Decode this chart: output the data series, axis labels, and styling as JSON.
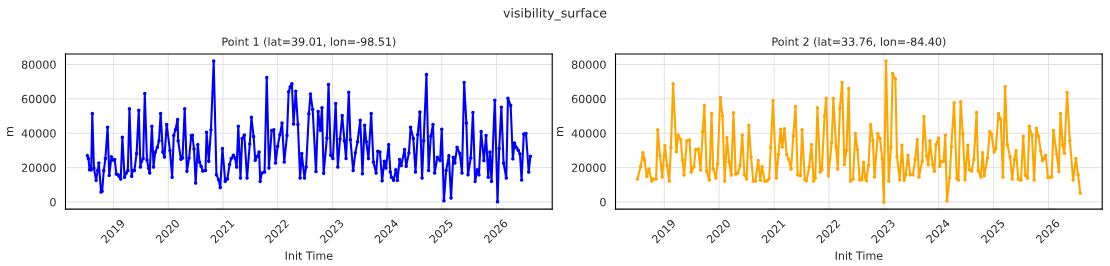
{
  "chart_data": [
    {
      "type": "line",
      "title": "Point 1 (lat=39.01, lon=-98.51)",
      "annotations": [
        "visibility_surface"
      ],
      "xlabel": "Init Time",
      "ylabel": "m",
      "xlim": [
        2018.12,
        2027.02
      ],
      "xticks": [
        2019,
        2020,
        2021,
        2022,
        2023,
        2024,
        2025,
        2026
      ],
      "ylim": [
        -4100,
        86100
      ],
      "yticks": [
        0,
        20000,
        40000,
        60000,
        80000
      ],
      "grid": true,
      "marker": "circle",
      "line_style": "solid",
      "series": [
        {
          "color": "#0000ff",
          "x": [
            2018.52,
            2018.54,
            2018.56,
            2018.59,
            2018.61,
            2018.64,
            2018.68,
            2018.71,
            2018.73,
            2018.77,
            2018.79,
            2018.82,
            2018.85,
            2018.89,
            2018.92,
            2018.96,
            2018.99,
            2019.02,
            2019.05,
            2019.08,
            2019.1,
            2019.13,
            2019.16,
            2019.2,
            2019.23,
            2019.26,
            2019.29,
            2019.33,
            2019.35,
            2019.38,
            2019.42,
            2019.46,
            2019.49,
            2019.51,
            2019.54,
            2019.57,
            2019.61,
            2019.64,
            2019.66,
            2019.7,
            2019.73,
            2019.76,
            2019.8,
            2019.83,
            2019.86,
            2019.9,
            2019.93,
            2019.97,
            2020.03,
            2020.07,
            2020.1,
            2020.13,
            2020.17,
            2020.18,
            2020.23,
            2020.26,
            2020.3,
            2020.34,
            2020.38,
            2020.42,
            2020.44,
            2020.47,
            2020.5,
            2020.54,
            2020.57,
            2020.6,
            2020.63,
            2020.68,
            2020.7,
            2020.74,
            2020.78,
            2020.83,
            2020.88,
            2020.92,
            2020.95,
            2020.99,
            2021.04,
            2021.08,
            2021.12,
            2021.15,
            2021.19,
            2021.22,
            2021.25,
            2021.28,
            2021.32,
            2021.35,
            2021.39,
            2021.44,
            2021.49,
            2021.52,
            2021.56,
            2021.59,
            2021.63,
            2021.66,
            2021.68,
            2021.71,
            2021.76,
            2021.8,
            2021.84,
            2021.89,
            2021.93,
            2021.96,
            2022.0,
            2022.04,
            2022.08,
            2022.12,
            2022.17,
            2022.2,
            2022.23,
            2022.26,
            2022.29,
            2022.33,
            2022.37,
            2022.41,
            2022.44,
            2022.49,
            2022.52,
            2022.57,
            2022.6,
            2022.64,
            2022.7,
            2022.74,
            2022.78,
            2022.81,
            2022.84,
            2022.9,
            2022.93,
            2022.97,
            2023.01,
            2023.06,
            2023.1,
            2023.14,
            2023.18,
            2023.22,
            2023.25,
            2023.3,
            2023.33,
            2023.38,
            2023.42,
            2023.46,
            2023.51,
            2023.55,
            2023.59,
            2023.62,
            2023.66,
            2023.71,
            2023.75,
            2023.8,
            2023.83,
            2023.87,
            2023.91,
            2023.95,
            2023.98,
            2024.03,
            2024.06,
            2024.08,
            2024.12,
            2024.16,
            2024.19,
            2024.23,
            2024.26,
            2024.32,
            2024.35,
            2024.4,
            2024.43,
            2024.48,
            2024.52,
            2024.56,
            2024.6,
            2024.64,
            2024.67,
            2024.72,
            2024.76,
            2024.8,
            2024.84,
            2024.87,
            2024.92,
            2024.97,
            2025.0,
            2025.04,
            2025.08,
            2025.13,
            2025.17,
            2025.21,
            2025.24,
            2025.28,
            2025.33,
            2025.37,
            2025.41,
            2025.45,
            2025.48,
            2025.53,
            2025.57,
            2025.61,
            2025.65,
            2025.68,
            2025.72,
            2025.77,
            2025.81,
            2025.85,
            2025.88,
            2025.91,
            2025.97,
            2026.02,
            2026.05,
            2026.09,
            2026.13,
            2026.18,
            2026.21,
            2026.26,
            2026.3,
            2026.33,
            2026.37,
            2026.4,
            2026.43,
            2026.46,
            2026.5,
            2026.54,
            2026.59,
            2026.62
          ],
          "values": [
            27000,
            25300,
            18800,
            18800,
            51500,
            19800,
            12600,
            18500,
            22700,
            5800,
            6200,
            18300,
            25300,
            43500,
            15500,
            26400,
            24500,
            24700,
            16300,
            15900,
            15000,
            13400,
            37700,
            14400,
            16900,
            18300,
            54200,
            15000,
            18300,
            18300,
            28200,
            53400,
            20400,
            23700,
            25300,
            63100,
            24500,
            19600,
            16900,
            44100,
            20400,
            28900,
            31900,
            35700,
            51500,
            29100,
            26200,
            45100,
            29900,
            14400,
            38700,
            42000,
            48000,
            35700,
            24900,
            25600,
            54200,
            17900,
            25600,
            38700,
            38800,
            30900,
            11100,
            33400,
            23300,
            20800,
            18100,
            18300,
            40600,
            23700,
            42000,
            82000,
            15900,
            13000,
            8500,
            31100,
            12000,
            13400,
            21800,
            25300,
            27200,
            25600,
            20400,
            44100,
            14000,
            36900,
            39000,
            14000,
            33800,
            49300,
            38100,
            24300,
            26600,
            29100,
            12000,
            16900,
            17500,
            72400,
            19800,
            41600,
            42100,
            22700,
            32400,
            39200,
            46000,
            23300,
            38700,
            64100,
            67000,
            68800,
            45400,
            64500,
            45100,
            14000,
            28200,
            14000,
            20400,
            51300,
            62900,
            53800,
            17700,
            52600,
            41800,
            54800,
            16700,
            37300,
            68400,
            27200,
            25300,
            57300,
            20400,
            36700,
            50300,
            35700,
            25300,
            63900,
            36300,
            18300,
            28600,
            35000,
            47600,
            16500,
            44700,
            35000,
            25300,
            51500,
            23300,
            16900,
            29500,
            29100,
            12400,
            23700,
            19800,
            33400,
            17500,
            14400,
            12600,
            18800,
            12600,
            24700,
            21200,
            30500,
            20800,
            28600,
            43500,
            36900,
            17500,
            39200,
            52400,
            14000,
            35700,
            74200,
            18300,
            38300,
            45100,
            16900,
            26000,
            24100,
            42300,
            800,
            18300,
            27000,
            2300,
            26000,
            22700,
            31900,
            28200,
            16900,
            69500,
            46000,
            15900,
            25600,
            52100,
            12000,
            18800,
            15900,
            41000,
            24100,
            38700,
            14400,
            29100,
            12000,
            59200,
            200,
            31100,
            55200,
            22700,
            14000,
            60400,
            56100,
            25100,
            34400,
            31500,
            30100,
            28000,
            12800,
            39600,
            39800,
            17500,
            26600
          ]
        }
      ]
    },
    {
      "type": "line",
      "title": "Point 2 (lat=33.76, lon=-84.40)",
      "xlabel": "Init Time",
      "ylabel": "m",
      "xlim": [
        2018.11,
        2026.98
      ],
      "xticks": [
        2019,
        2020,
        2021,
        2022,
        2023,
        2024,
        2025,
        2026
      ],
      "ylim": [
        -4100,
        86100
      ],
      "yticks": [
        0,
        20000,
        40000,
        60000,
        80000
      ],
      "grid": true,
      "marker": "circle",
      "line_style": "solid",
      "series": [
        {
          "color": "#ffa500",
          "x": [
            2018.51,
            2018.57,
            2018.61,
            2018.64,
            2018.68,
            2018.72,
            2018.77,
            2018.8,
            2018.85,
            2018.88,
            2018.92,
            2018.96,
            2019.01,
            2019.05,
            2019.09,
            2019.12,
            2019.16,
            2019.22,
            2019.25,
            2019.3,
            2019.33,
            2019.36,
            2019.41,
            2019.46,
            2019.49,
            2019.54,
            2019.57,
            2019.62,
            2019.66,
            2019.7,
            2019.73,
            2019.77,
            2019.82,
            2019.86,
            2019.89,
            2019.94,
            2019.97,
            2020.02,
            2020.06,
            2020.1,
            2020.14,
            2020.18,
            2020.22,
            2020.26,
            2020.3,
            2020.34,
            2020.38,
            2020.42,
            2020.46,
            2020.5,
            2020.54,
            2020.58,
            2020.62,
            2020.66,
            2020.71,
            2020.75,
            2020.78,
            2020.83,
            2020.87,
            2020.91,
            2020.94,
            2020.98,
            2021.04,
            2021.08,
            2021.12,
            2021.15,
            2021.19,
            2021.23,
            2021.27,
            2021.31,
            2021.35,
            2021.39,
            2021.43,
            2021.48,
            2021.51,
            2021.56,
            2021.59,
            2021.64,
            2021.68,
            2021.72,
            2021.75,
            2021.79,
            2021.84,
            2021.87,
            2021.92,
            2021.95,
            2021.99,
            2022.05,
            2022.08,
            2022.13,
            2022.16,
            2022.2,
            2022.24,
            2022.28,
            2022.32,
            2022.36,
            2022.39,
            2022.44,
            2022.48,
            2022.52,
            2022.56,
            2022.6,
            2022.63,
            2022.66,
            2022.68,
            2022.72,
            2022.76,
            2022.8,
            2022.83,
            2022.89,
            2022.93,
            2022.97,
            2023.0,
            2023.04,
            2023.09,
            2023.13,
            2023.16,
            2023.21,
            2023.24,
            2023.29,
            2023.33,
            2023.37,
            2023.4,
            2023.44,
            2023.48,
            2023.53,
            2023.57,
            2023.61,
            2023.64,
            2023.7,
            2023.73,
            2023.78,
            2023.81,
            2023.84,
            2023.89,
            2023.92,
            2023.95,
            2024.0,
            2024.02,
            2024.05,
            2024.09,
            2024.12,
            2024.15,
            2024.2,
            2024.23,
            2024.28,
            2024.33,
            2024.36,
            2024.4,
            2024.44,
            2024.48,
            2024.53,
            2024.56,
            2024.6,
            2024.64,
            2024.69,
            2024.72,
            2024.77,
            2024.8,
            2024.83,
            2024.89,
            2024.93,
            2024.96,
            2025.01,
            2025.04,
            2025.09,
            2025.13,
            2025.17,
            2025.21,
            2025.25,
            2025.3,
            2025.34,
            2025.38,
            2025.41,
            2025.45,
            2025.48,
            2025.5,
            2025.54,
            2025.58,
            2025.62,
            2025.65,
            2025.7,
            2025.74,
            2025.78,
            2025.82,
            2025.86,
            2025.89,
            2025.92,
            2025.95,
            2025.99,
            2026.02,
            2026.06,
            2026.09,
            2026.15,
            2026.19,
            2026.22,
            2026.26,
            2026.29,
            2026.34,
            2026.39,
            2026.45,
            2026.5,
            2026.54,
            2026.58
          ],
          "values": [
            13400,
            20800,
            28700,
            24500,
            15000,
            19200,
            12200,
            13400,
            13400,
            42000,
            27000,
            14600,
            32800,
            21200,
            12200,
            31700,
            68800,
            29300,
            39000,
            36300,
            24500,
            15700,
            35700,
            36100,
            17500,
            20600,
            30500,
            30900,
            18600,
            41000,
            56100,
            18100,
            12800,
            51500,
            19200,
            14000,
            22300,
            60800,
            50100,
            12200,
            37500,
            23300,
            15700,
            51900,
            16300,
            16900,
            21200,
            39000,
            15900,
            13400,
            44500,
            26400,
            12200,
            12200,
            24100,
            12600,
            20600,
            12200,
            12200,
            13600,
            31700,
            59000,
            14000,
            27600,
            42300,
            32000,
            42700,
            27600,
            24700,
            19200,
            38300,
            55500,
            15900,
            15300,
            42000,
            13000,
            12400,
            20400,
            33400,
            12200,
            14000,
            54800,
            17500,
            18800,
            49900,
            60400,
            15200,
            34600,
            60200,
            32200,
            19200,
            54600,
            69500,
            21800,
            30100,
            66000,
            12200,
            13400,
            39800,
            30500,
            13000,
            13000,
            23100,
            14200,
            12400,
            21400,
            45100,
            35700,
            14600,
            39800,
            36900,
            25300,
            0,
            82000,
            12200,
            31900,
            74800,
            71500,
            26400,
            13000,
            33000,
            12600,
            15900,
            27200,
            15900,
            15900,
            24700,
            36300,
            14600,
            23700,
            49700,
            26600,
            21600,
            35700,
            21800,
            17900,
            33400,
            37300,
            20800,
            23700,
            23700,
            38800,
            800,
            14200,
            32200,
            57700,
            13600,
            12800,
            58300,
            39600,
            13000,
            33000,
            18800,
            18100,
            24700,
            52100,
            18300,
            14600,
            28700,
            15300,
            25600,
            41000,
            39600,
            29100,
            31100,
            51500,
            48000,
            14600,
            67200,
            33400,
            26400,
            13400,
            24700,
            29900,
            13400,
            13000,
            12800,
            38300,
            15500,
            14000,
            44100,
            38800,
            12800,
            42900,
            38300,
            29500,
            24100,
            25600,
            27200,
            14200,
            14600,
            14600,
            41600,
            28000,
            17700,
            51500,
            33000,
            28400,
            63700,
            35700,
            12800,
            25300,
            15900,
            5200
          ]
        }
      ]
    }
  ]
}
